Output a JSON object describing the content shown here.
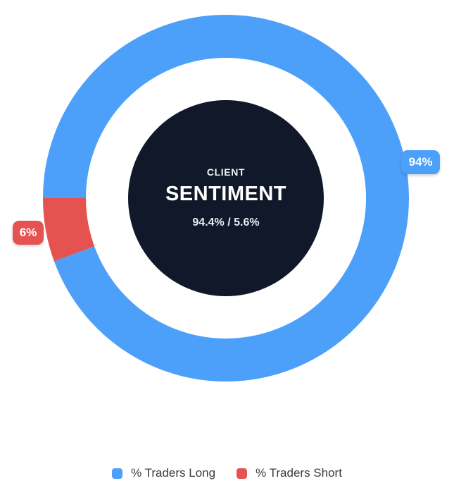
{
  "widget": {
    "background": "#FFFFFF"
  },
  "chart_data": {
    "type": "pie",
    "subtype": "donut",
    "title": "",
    "start_angle_deg": 270,
    "direction": "clockwise",
    "slices": [
      {
        "label": "% Traders Long",
        "value": 94.4,
        "percent_label": "94%",
        "color": "#4DA0FA"
      },
      {
        "label": "% Traders Short",
        "value": 5.6,
        "percent_label": "6%",
        "color": "#E4534F"
      }
    ],
    "center_text": {
      "eyebrow": "CLIENT",
      "title": "SENTIMENT",
      "ratio": "94.4% / 5.6%",
      "bg_color": "#111829",
      "text_color": "#FFFFFF"
    },
    "legend": {
      "position": "bottom",
      "text_color": "#373D3F",
      "items": [
        {
          "label": "% Traders Long",
          "color": "#4DA0FA"
        },
        {
          "label": "% Traders Short",
          "color": "#E4534F"
        }
      ]
    }
  }
}
